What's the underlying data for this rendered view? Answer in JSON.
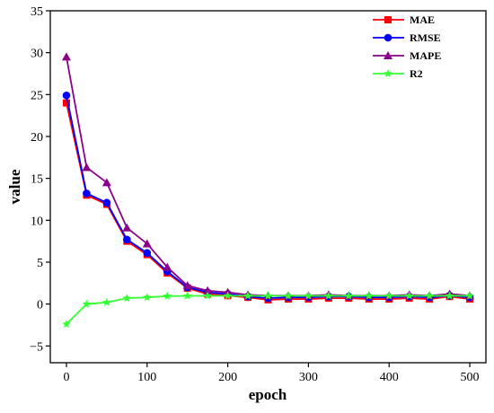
{
  "chart_data": {
    "type": "line",
    "xlabel": "epoch",
    "ylabel": "value",
    "xlim": [
      -20,
      520
    ],
    "ylim": [
      -7,
      35
    ],
    "xticks": [
      0,
      100,
      200,
      300,
      400,
      500
    ],
    "yticks": [
      -5,
      0,
      5,
      10,
      15,
      20,
      25,
      30,
      35
    ],
    "grid": false,
    "legend_position": "top-right",
    "x": [
      0,
      25,
      50,
      75,
      100,
      125,
      150,
      175,
      200,
      225,
      250,
      275,
      300,
      325,
      350,
      375,
      400,
      425,
      450,
      475,
      500
    ],
    "series": [
      {
        "name": "MAE",
        "color": "#ff0000",
        "marker": "square",
        "values": [
          24.0,
          13.0,
          11.9,
          7.5,
          5.9,
          3.7,
          1.9,
          1.2,
          1.0,
          0.8,
          0.5,
          0.6,
          0.6,
          0.7,
          0.7,
          0.6,
          0.6,
          0.7,
          0.6,
          0.9,
          0.6
        ]
      },
      {
        "name": "RMSE",
        "color": "#0000ff",
        "marker": "circle",
        "values": [
          24.9,
          13.2,
          12.1,
          7.7,
          6.1,
          3.9,
          2.0,
          1.4,
          1.2,
          0.9,
          0.7,
          0.8,
          0.8,
          0.9,
          0.9,
          0.8,
          0.8,
          0.9,
          0.8,
          1.0,
          0.8
        ]
      },
      {
        "name": "MAPE",
        "color": "#8b008b",
        "marker": "triangle",
        "values": [
          29.5,
          16.3,
          14.5,
          9.1,
          7.2,
          4.4,
          2.2,
          1.6,
          1.4,
          1.1,
          1.0,
          1.0,
          1.0,
          1.1,
          1.0,
          1.0,
          1.0,
          1.1,
          1.0,
          1.2,
          1.0
        ]
      },
      {
        "name": "R2",
        "color": "#33ff33",
        "marker": "star",
        "values": [
          -2.4,
          0.0,
          0.2,
          0.7,
          0.8,
          0.95,
          0.97,
          0.98,
          0.98,
          0.98,
          0.98,
          0.98,
          0.98,
          0.98,
          0.98,
          0.98,
          0.98,
          0.98,
          0.98,
          0.98,
          0.98
        ]
      }
    ]
  }
}
